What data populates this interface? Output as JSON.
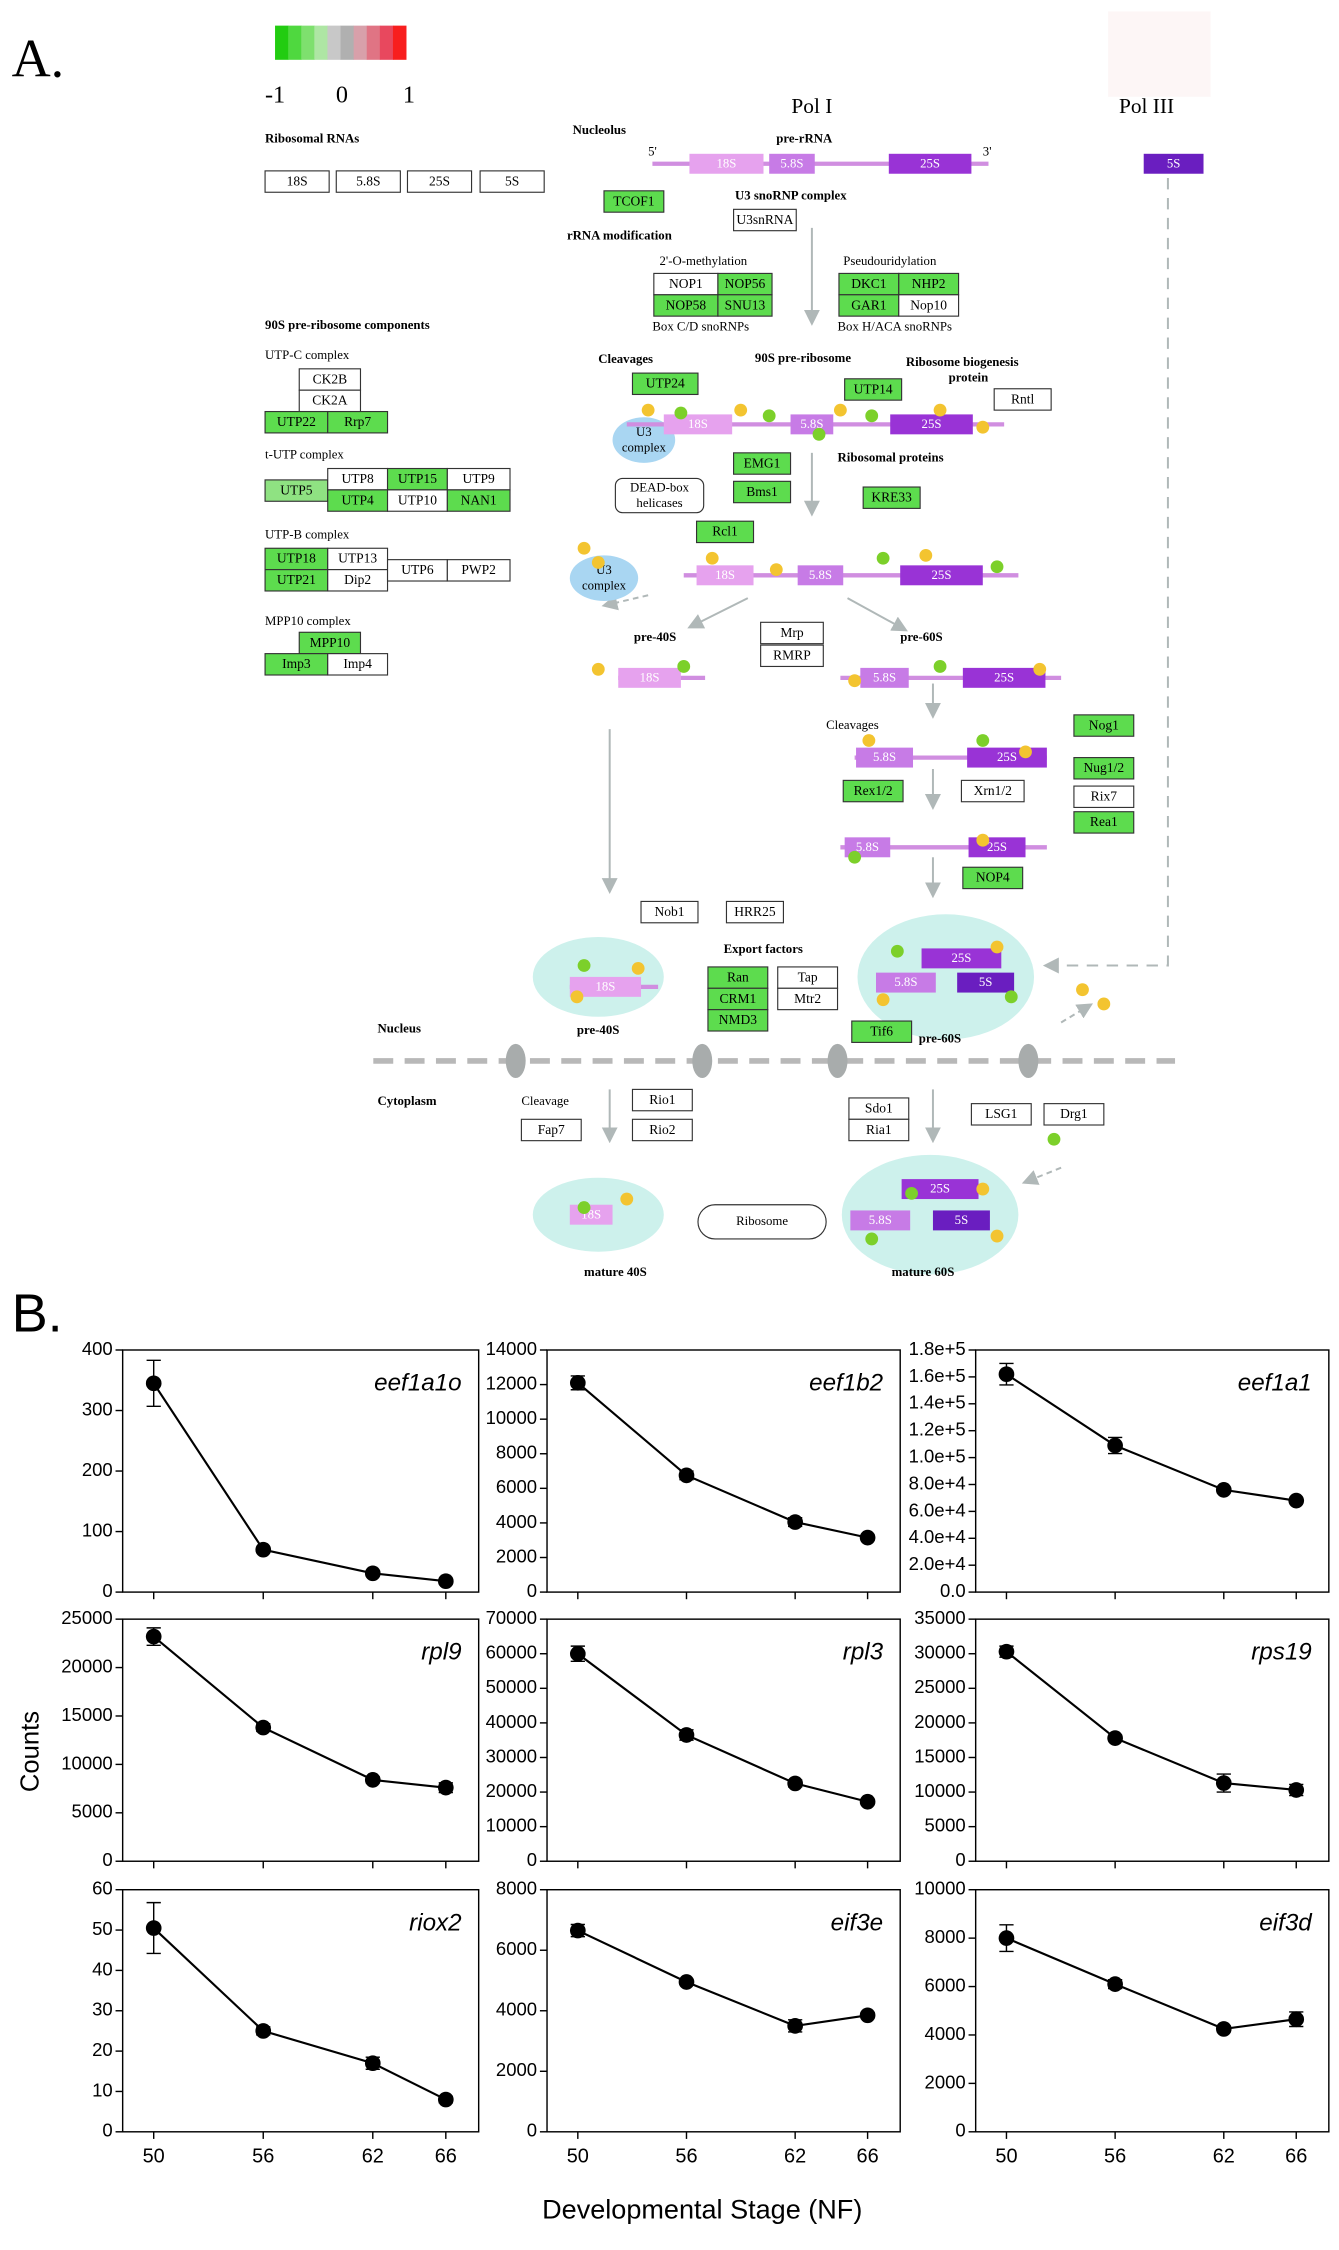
{
  "panel_a": {
    "label": "A.",
    "legend": {
      "colors": [
        "#22cc11",
        "#4fd83f",
        "#7ee06e",
        "#aee6a4",
        "#c8c8c8",
        "#b0b0b0",
        "#d8a0aa",
        "#e07484",
        "#e8485e",
        "#f81e1e"
      ],
      "ticks": [
        -1,
        0,
        1
      ]
    },
    "texts": [
      "Ribosomal RNAs",
      "Nucleolus",
      "Pol I",
      "Pol III",
      "pre-rRNA",
      "5'",
      "3'",
      "U3 snoRNP complex",
      "rRNA modification",
      "2'-O-methylation",
      "Pseudouridylation",
      "Box C/D snoRNPs",
      "Box H/ACA snoRNPs",
      "90S pre-ribosome components",
      "UTP-C complex",
      "t-UTP complex",
      "UTP-B complex",
      "MPP10 complex",
      "Cleavages",
      "90S pre-ribosome",
      "Ribosome biogenesis",
      "protein",
      "Ribosomal proteins",
      "U3",
      "complex",
      "DEAD-box",
      "helicases",
      "U3",
      "complex",
      "pre-40S",
      "pre-60S",
      "Cleavages",
      "Export factors",
      "pre-40S",
      "pre-60S",
      "Nucleus",
      "Cytoplasm",
      "Cleavage",
      "Ribosome",
      "mature 40S",
      "mature 60S"
    ],
    "boxes": [
      {
        "label": "18S",
        "color": "#ffffff"
      },
      {
        "label": "5.8S",
        "color": "#ffffff"
      },
      {
        "label": "25S",
        "color": "#ffffff"
      },
      {
        "label": "5S",
        "color": "#ffffff"
      },
      {
        "label": "TCOF1",
        "color": "#5ddc4e"
      },
      {
        "label": "U3snRNA",
        "color": "#ffffff"
      },
      {
        "label": "NOP1",
        "color": "#ffffff"
      },
      {
        "label": "NOP56",
        "color": "#5ddc4e"
      },
      {
        "label": "NOP58",
        "color": "#5ddc4e"
      },
      {
        "label": "SNU13",
        "color": "#5ddc4e"
      },
      {
        "label": "DKC1",
        "color": "#5ddc4e"
      },
      {
        "label": "NHP2",
        "color": "#5ddc4e"
      },
      {
        "label": "GAR1",
        "color": "#5ddc4e"
      },
      {
        "label": "Nop10",
        "color": "#ffffff"
      },
      {
        "label": "CK2B",
        "color": "#ffffff"
      },
      {
        "label": "CK2A",
        "color": "#ffffff"
      },
      {
        "label": "UTP22",
        "color": "#5ddc4e"
      },
      {
        "label": "Rrp7",
        "color": "#5ddc4e"
      },
      {
        "label": "UTP5",
        "color": "#8fe282"
      },
      {
        "label": "UTP8",
        "color": "#ffffff"
      },
      {
        "label": "UTP15",
        "color": "#5ddc4e"
      },
      {
        "label": "UTP9",
        "color": "#ffffff"
      },
      {
        "label": "UTP4",
        "color": "#5ddc4e"
      },
      {
        "label": "UTP10",
        "color": "#ffffff"
      },
      {
        "label": "NAN1",
        "color": "#5ddc4e"
      },
      {
        "label": "UTP18",
        "color": "#5ddc4e"
      },
      {
        "label": "UTP13",
        "color": "#ffffff"
      },
      {
        "label": "UTP21",
        "color": "#5ddc4e"
      },
      {
        "label": "Dip2",
        "color": "#ffffff"
      },
      {
        "label": "UTP6",
        "color": "#ffffff"
      },
      {
        "label": "PWP2",
        "color": "#ffffff"
      },
      {
        "label": "MPP10",
        "color": "#5ddc4e"
      },
      {
        "label": "Imp3",
        "color": "#5ddc4e"
      },
      {
        "label": "Imp4",
        "color": "#ffffff"
      },
      {
        "label": "UTP24",
        "color": "#5ddc4e"
      },
      {
        "label": "UTP14",
        "color": "#5ddc4e"
      },
      {
        "label": "Rntl",
        "color": "#ffffff"
      },
      {
        "label": "EMG1",
        "color": "#5ddc4e"
      },
      {
        "label": "Bms1",
        "color": "#5ddc4e"
      },
      {
        "label": "KRE33",
        "color": "#5ddc4e"
      },
      {
        "label": "Rcl1",
        "color": "#5ddc4e"
      },
      {
        "label": "Mrp",
        "color": "#ffffff"
      },
      {
        "label": "RMRP",
        "color": "#ffffff"
      },
      {
        "label": "Nog1",
        "color": "#5ddc4e"
      },
      {
        "label": "Nug1/2",
        "color": "#5ddc4e"
      },
      {
        "label": "Rix7",
        "color": "#ffffff"
      },
      {
        "label": "Rea1",
        "color": "#5ddc4e"
      },
      {
        "label": "Rex1/2",
        "color": "#5ddc4e"
      },
      {
        "label": "Xrn1/2",
        "color": "#ffffff"
      },
      {
        "label": "NOP4",
        "color": "#5ddc4e"
      },
      {
        "label": "Nob1",
        "color": "#ffffff"
      },
      {
        "label": "HRR25",
        "color": "#ffffff"
      },
      {
        "label": "Ran",
        "color": "#5ddc4e"
      },
      {
        "label": "CRM1",
        "color": "#5ddc4e"
      },
      {
        "label": "NMD3",
        "color": "#5ddc4e"
      },
      {
        "label": "Tap",
        "color": "#ffffff"
      },
      {
        "label": "Mtr2",
        "color": "#ffffff"
      },
      {
        "label": "Tif6",
        "color": "#5ddc4e"
      },
      {
        "label": "Rio1",
        "color": "#ffffff"
      },
      {
        "label": "Rio2",
        "color": "#ffffff"
      },
      {
        "label": "Fap7",
        "color": "#ffffff"
      },
      {
        "label": "Sdo1",
        "color": "#ffffff"
      },
      {
        "label": "Ria1",
        "color": "#ffffff"
      },
      {
        "label": "LSG1",
        "color": "#ffffff"
      },
      {
        "label": "Drg1",
        "color": "#ffffff"
      }
    ],
    "rrna": [
      {
        "label": "18S",
        "color": "#e6a2ee"
      },
      {
        "label": "5.8S",
        "color": "#c77be6"
      },
      {
        "label": "25S",
        "color": "#9933d6"
      },
      {
        "label": "5S",
        "color": "#6a1ec0"
      },
      {
        "label": "18S",
        "color": "#e6a2ee"
      },
      {
        "label": "5.8S",
        "color": "#c77be6"
      },
      {
        "label": "25S",
        "color": "#9933d6"
      },
      {
        "label": "18S",
        "color": "#e6a2ee"
      },
      {
        "label": "5.8S",
        "color": "#c77be6"
      },
      {
        "label": "25S",
        "color": "#9933d6"
      },
      {
        "label": "18S",
        "color": "#e6a2ee"
      },
      {
        "label": "5.8S",
        "color": "#c77be6"
      },
      {
        "label": "25S",
        "color": "#9933d6"
      },
      {
        "label": "5.8S",
        "color": "#c77be6"
      },
      {
        "label": "25S",
        "color": "#9933d6"
      },
      {
        "label": "5.8S",
        "color": "#c77be6"
      },
      {
        "label": "25S",
        "color": "#9933d6"
      },
      {
        "label": "18S",
        "color": "#e6a2ee"
      },
      {
        "label": "25S",
        "color": "#9933d6"
      },
      {
        "label": "5.8S",
        "color": "#c77be6"
      },
      {
        "label": "5S",
        "color": "#6a1ec0"
      },
      {
        "label": "18S",
        "color": "#e6a2ee"
      },
      {
        "label": "25S",
        "color": "#9933d6"
      },
      {
        "label": "5.8S",
        "color": "#c77be6"
      },
      {
        "label": "5S",
        "color": "#6a1ec0"
      }
    ]
  },
  "panel_b": {
    "label": "B.",
    "y_label": "Counts",
    "x_label": "Developmental Stage (NF)"
  },
  "chart_data": [
    {
      "type": "line",
      "title": "eef1a1o",
      "x": [
        50,
        56,
        62,
        66
      ],
      "values": [
        345,
        70,
        31,
        18
      ],
      "errors": [
        38,
        3,
        2,
        2
      ],
      "xlim": [
        48.3,
        67.8
      ],
      "xticks": [
        50,
        56,
        62,
        66
      ],
      "ylim": [
        0,
        400
      ],
      "yticks": [
        0,
        100,
        200,
        300,
        400
      ],
      "color": "#000000"
    },
    {
      "type": "line",
      "title": "eef1b2",
      "x": [
        50,
        56,
        62,
        66
      ],
      "values": [
        12100,
        6750,
        4050,
        3150
      ],
      "errors": [
        400,
        250,
        250,
        150
      ],
      "xlim": [
        48.3,
        67.8
      ],
      "xticks": [
        50,
        56,
        62,
        66
      ],
      "ylim": [
        0,
        14000
      ],
      "yticks": [
        0,
        2000,
        4000,
        6000,
        8000,
        10000,
        12000,
        14000
      ],
      "color": "#000000"
    },
    {
      "type": "line",
      "title": "eef1a1",
      "x": [
        50,
        56,
        62,
        66
      ],
      "values": [
        162000,
        109000,
        76000,
        68000
      ],
      "errors": [
        8000,
        6000,
        2000,
        1500
      ],
      "xlim": [
        48.3,
        67.8
      ],
      "xticks": [
        50,
        56,
        62,
        66
      ],
      "ylim": [
        0,
        180000
      ],
      "yticks": [
        {
          "value": 0,
          "label": "0.0"
        },
        {
          "value": 20000,
          "label": "2.0e+4"
        },
        {
          "value": 40000,
          "label": "4.0e+4"
        },
        {
          "value": 60000,
          "label": "6.0e+4"
        },
        {
          "value": 80000,
          "label": "8.0e+4"
        },
        {
          "value": 100000,
          "label": "1.0e+5"
        },
        {
          "value": 120000,
          "label": "1.2e+5"
        },
        {
          "value": 140000,
          "label": "1.4e+5"
        },
        {
          "value": 160000,
          "label": "1.6e+5"
        },
        {
          "value": 180000,
          "label": "1.8e+5"
        }
      ],
      "color": "#000000"
    },
    {
      "type": "line",
      "title": "rpl9",
      "x": [
        50,
        56,
        62,
        66
      ],
      "values": [
        23200,
        13800,
        8400,
        7600
      ],
      "errors": [
        900,
        400,
        300,
        500
      ],
      "xlim": [
        48.3,
        67.8
      ],
      "xticks": [
        50,
        56,
        62,
        66
      ],
      "ylim": [
        0,
        25000
      ],
      "yticks": [
        0,
        5000,
        10000,
        15000,
        20000,
        25000
      ],
      "color": "#000000"
    },
    {
      "type": "line",
      "title": "rpl3",
      "x": [
        50,
        56,
        62,
        66
      ],
      "values": [
        60000,
        36500,
        22500,
        17200
      ],
      "errors": [
        2200,
        1500,
        1000,
        600
      ],
      "xlim": [
        48.3,
        67.8
      ],
      "xticks": [
        50,
        56,
        62,
        66
      ],
      "ylim": [
        0,
        70000
      ],
      "yticks": [
        0,
        10000,
        20000,
        30000,
        40000,
        50000,
        60000,
        70000
      ],
      "color": "#000000"
    },
    {
      "type": "line",
      "title": "rps19",
      "x": [
        50,
        56,
        62,
        66
      ],
      "values": [
        30300,
        17800,
        11300,
        10300
      ],
      "errors": [
        800,
        400,
        1300,
        800
      ],
      "xlim": [
        48.3,
        67.8
      ],
      "xticks": [
        50,
        56,
        62,
        66
      ],
      "ylim": [
        0,
        35000
      ],
      "yticks": [
        0,
        5000,
        10000,
        15000,
        20000,
        25000,
        30000,
        35000
      ],
      "color": "#000000"
    },
    {
      "type": "line",
      "title": "riox2",
      "x": [
        50,
        56,
        62,
        66
      ],
      "values": [
        50.5,
        25,
        17,
        8
      ],
      "errors": [
        6.3,
        1,
        1.5,
        0.8
      ],
      "xlim": [
        48.3,
        67.8
      ],
      "xticks": [
        50,
        56,
        62,
        66
      ],
      "ylim": [
        0,
        60
      ],
      "yticks": [
        0,
        10,
        20,
        30,
        40,
        50,
        60
      ],
      "color": "#000000"
    },
    {
      "type": "line",
      "title": "eif3e",
      "x": [
        50,
        56,
        62,
        66
      ],
      "values": [
        6650,
        4950,
        3500,
        3850
      ],
      "errors": [
        200,
        80,
        200,
        80
      ],
      "xlim": [
        48.3,
        67.8
      ],
      "xticks": [
        50,
        56,
        62,
        66
      ],
      "ylim": [
        0,
        8000
      ],
      "yticks": [
        0,
        2000,
        4000,
        6000,
        8000
      ],
      "color": "#000000"
    },
    {
      "type": "line",
      "title": "eif3d",
      "x": [
        50,
        56,
        62,
        66
      ],
      "values": [
        8000,
        6100,
        4250,
        4650
      ],
      "errors": [
        550,
        180,
        120,
        300
      ],
      "xlim": [
        48.3,
        67.8
      ],
      "xticks": [
        50,
        56,
        62,
        66
      ],
      "ylim": [
        0,
        10000
      ],
      "yticks": [
        0,
        2000,
        4000,
        6000,
        8000,
        10000
      ],
      "color": "#000000"
    }
  ]
}
